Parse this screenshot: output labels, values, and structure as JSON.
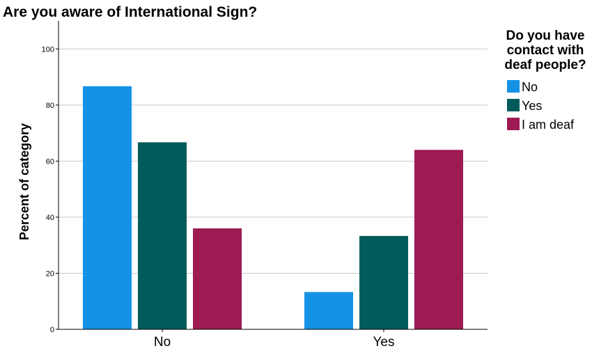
{
  "chart_data": {
    "type": "bar",
    "title": "Are you aware of International Sign?",
    "xlabel": "",
    "ylabel": "Percent of category",
    "ylim": [
      0,
      110
    ],
    "yticks": [
      0,
      20,
      40,
      60,
      80,
      100
    ],
    "grid": true,
    "categories": [
      "No",
      "Yes"
    ],
    "legend": {
      "title": "Do you have contact with deaf people?",
      "title_lines": [
        "Do you have",
        "contact with",
        "deaf people?"
      ],
      "position": "right"
    },
    "series": [
      {
        "name": "No",
        "color": "#1592e6",
        "values": [
          86.7,
          13.3
        ]
      },
      {
        "name": "Yes",
        "color": "#005b5a",
        "values": [
          66.7,
          33.3
        ]
      },
      {
        "name": "I am deaf",
        "color": "#9d1a52",
        "values": [
          36.0,
          64.0
        ]
      }
    ]
  }
}
